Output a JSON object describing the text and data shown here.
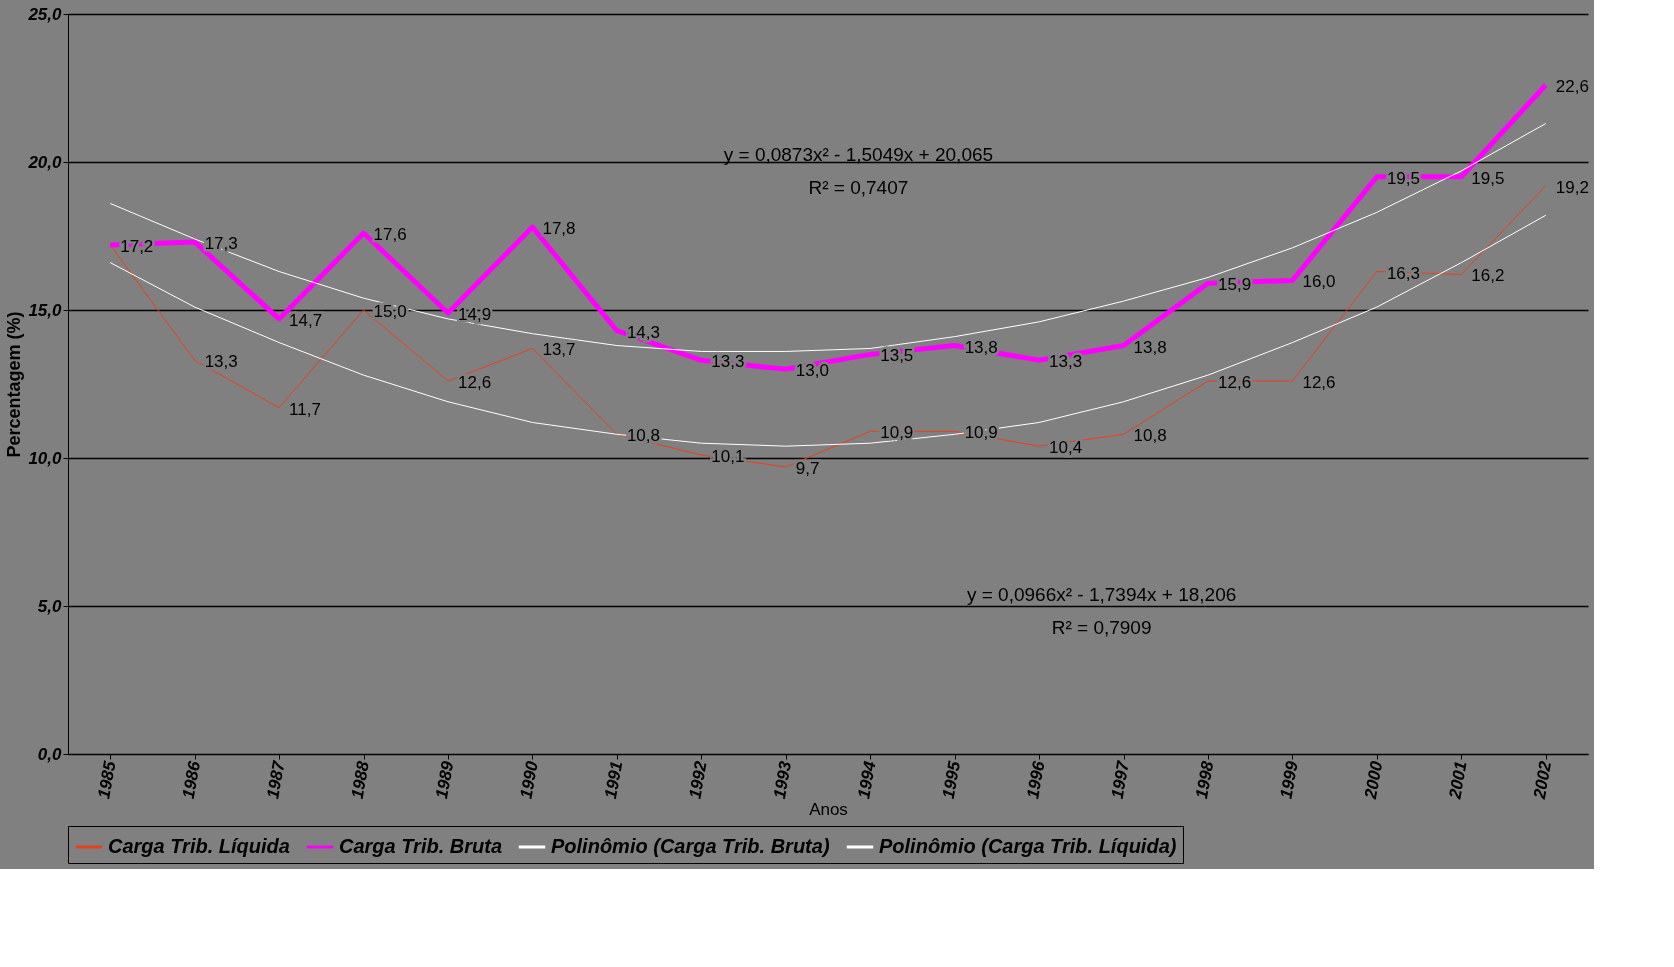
{
  "chart_data": {
    "type": "line",
    "xlabel": "Anos",
    "ylabel": "Percentagem (%)",
    "categories": [
      "1985",
      "1986",
      "1987",
      "1988",
      "1989",
      "1990",
      "1991",
      "1992",
      "1993",
      "1994",
      "1995",
      "1996",
      "1997",
      "1998",
      "1999",
      "2000",
      "2001",
      "2002"
    ],
    "series": [
      {
        "name": "Carga Trib. Líquida",
        "color": "#e8401c",
        "values": [
          17.2,
          13.3,
          11.7,
          15.0,
          12.6,
          13.7,
          10.8,
          10.1,
          9.7,
          10.9,
          10.9,
          10.4,
          10.8,
          12.6,
          12.6,
          16.3,
          16.2,
          19.2
        ],
        "value_labels": [
          null,
          "13,3",
          "11,7",
          "15,0",
          "12,6",
          "13,7",
          "10,8",
          "10,1",
          "9,7",
          "10,9",
          "10,9",
          "10,4",
          "10,8",
          "12,6",
          "12,6",
          "16,3",
          "16,2",
          "19,2"
        ]
      },
      {
        "name": "Carga Trib. Bruta",
        "color": "#ff00ff",
        "values": [
          17.2,
          17.3,
          14.7,
          17.6,
          14.9,
          17.8,
          14.3,
          13.3,
          13.0,
          13.5,
          13.8,
          13.3,
          13.8,
          15.9,
          16.0,
          19.5,
          19.5,
          22.6
        ],
        "value_labels": [
          "17,2",
          "17,3",
          "14,7",
          "17,6",
          "14,9",
          "17,8",
          "14,3",
          "13,3",
          "13,0",
          "13,5",
          "13,8",
          "13,3",
          "13,8",
          "15,9",
          "16,0",
          "19,5",
          "19,5",
          "22,6"
        ]
      },
      {
        "name": "Polinômio (Carga Trib. Bruta)",
        "color": "#ffffff",
        "values": [
          18.6,
          17.4,
          16.3,
          15.4,
          14.7,
          14.2,
          13.8,
          13.6,
          13.6,
          13.7,
          14.1,
          14.6,
          15.3,
          16.1,
          17.1,
          18.3,
          19.7,
          21.3
        ]
      },
      {
        "name": "Polinômio (Carga Trib. Líquida)",
        "color": "#ffffff",
        "values": [
          16.6,
          15.1,
          13.9,
          12.8,
          11.9,
          11.2,
          10.8,
          10.5,
          10.4,
          10.5,
          10.8,
          11.2,
          11.9,
          12.8,
          13.9,
          15.1,
          16.6,
          18.2
        ]
      }
    ],
    "ylim": [
      0,
      25
    ],
    "yticks": [
      {
        "value": 0,
        "label": "0,0"
      },
      {
        "value": 5,
        "label": "5,0"
      },
      {
        "value": 10,
        "label": "10,0"
      },
      {
        "value": 15,
        "label": "15,0"
      },
      {
        "value": 20,
        "label": "20,0"
      },
      {
        "value": 25,
        "label": "25,0"
      }
    ],
    "grid": "y",
    "legend": "bottom",
    "annotations": [
      "y = 0,0873x² - 1,5049x + 20,065",
      "R² = 0,7407",
      "y = 0,0966x² - 1,7394x + 18,206",
      "R² = 0,7909"
    ]
  }
}
